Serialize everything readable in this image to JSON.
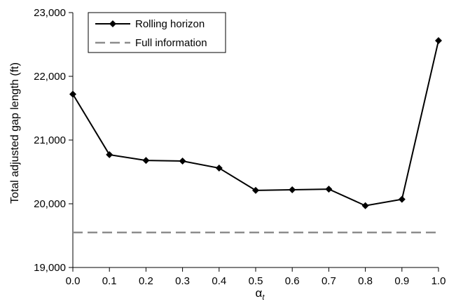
{
  "chart_data": {
    "type": "line",
    "title": "",
    "xlabel": "α",
    "xlabel_subscript": "t",
    "ylabel": "Total adjusted gap length (ft)",
    "xlim": [
      0.0,
      1.0
    ],
    "ylim": [
      19000,
      23000
    ],
    "x_ticks": [
      "0.0",
      "0.1",
      "0.2",
      "0.3",
      "0.4",
      "0.5",
      "0.6",
      "0.7",
      "0.8",
      "0.9",
      "1.0"
    ],
    "y_ticks": [
      "19,000",
      "20,000",
      "21,000",
      "22,000",
      "23,000"
    ],
    "grid": false,
    "legend_position": "top-left",
    "series": [
      {
        "name": "Rolling horizon",
        "style": "solid-diamond",
        "color": "#000000",
        "x": [
          0.0,
          0.1,
          0.2,
          0.3,
          0.4,
          0.5,
          0.6,
          0.7,
          0.8,
          0.9,
          1.0
        ],
        "values": [
          21720,
          20770,
          20680,
          20670,
          20560,
          20210,
          20220,
          20230,
          19970,
          20070,
          22560
        ]
      },
      {
        "name": "Full information",
        "style": "dashed",
        "color": "#8c8c8c",
        "x": [
          0.0,
          1.0
        ],
        "values": [
          19550,
          19550
        ]
      }
    ]
  }
}
